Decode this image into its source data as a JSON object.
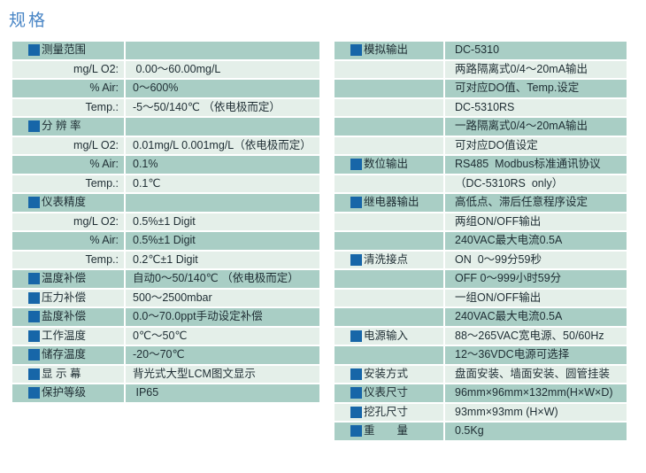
{
  "title": "规格",
  "colors": {
    "row_dark": "#a9cec5",
    "row_light": "#e4efe9",
    "bullet_blue": "#1766a8",
    "title_blue": "#4a86c6",
    "text": "#1e2d33"
  },
  "left_table": {
    "rows": [
      {
        "type": "section",
        "label": "测量范围",
        "value": ""
      },
      {
        "type": "sub",
        "label": "mg/L O2:",
        "value": " 0.00～60.00mg/L"
      },
      {
        "type": "sub",
        "label": "% Air:",
        "value": "0～600%"
      },
      {
        "type": "sub",
        "label": "Temp.:",
        "value": "-5～50/140℃ （依电极而定）"
      },
      {
        "type": "section",
        "label": "分 辨 率",
        "value": ""
      },
      {
        "type": "sub",
        "label": "mg/L O2:",
        "value": "0.01mg/L 0.001mg/L（依电极而定）"
      },
      {
        "type": "sub",
        "label": "% Air:",
        "value": "0.1%"
      },
      {
        "type": "sub",
        "label": "Temp.:",
        "value": "0.1℃"
      },
      {
        "type": "section",
        "label": "仪表精度",
        "value": ""
      },
      {
        "type": "sub",
        "label": "mg/L O2:",
        "value": "0.5%±1 Digit"
      },
      {
        "type": "sub",
        "label": "% Air:",
        "value": "0.5%±1 Digit"
      },
      {
        "type": "sub",
        "label": "Temp.:",
        "value": "0.2℃±1 Digit"
      },
      {
        "type": "section",
        "label": "温度补偿",
        "value": "自动0～50/140℃ （依电极而定）"
      },
      {
        "type": "section",
        "label": "压力补偿",
        "value": "500～2500mbar"
      },
      {
        "type": "section",
        "label": "盐度补偿",
        "value": "0.0～70.0ppt手动设定补偿"
      },
      {
        "type": "section",
        "label": "工作温度",
        "value": "0℃～50℃"
      },
      {
        "type": "section",
        "label": "储存温度",
        "value": "-20～70℃"
      },
      {
        "type": "section",
        "label": "显 示 幕",
        "value": "背光式大型LCM图文显示"
      },
      {
        "type": "section",
        "label": "保护等级",
        "value": " IP65"
      }
    ]
  },
  "right_table": {
    "rows": [
      {
        "type": "section",
        "label": "模拟输出",
        "value": "DC-5310"
      },
      {
        "type": "cont",
        "label": "",
        "value": "两路隔离式0/4～20mA输出"
      },
      {
        "type": "cont",
        "label": "",
        "value": "可对应DO值、Temp.设定"
      },
      {
        "type": "cont",
        "label": "",
        "value": "DC-5310RS"
      },
      {
        "type": "cont",
        "label": "",
        "value": "一路隔离式0/4～20mA输出"
      },
      {
        "type": "cont",
        "label": "",
        "value": "可对应DO值设定"
      },
      {
        "type": "section",
        "label": "数位输出",
        "value": "RS485  Modbus标准通讯协议"
      },
      {
        "type": "cont",
        "label": "",
        "value": "（DC-5310RS  only）"
      },
      {
        "type": "section",
        "label": "继电器输出",
        "value": "高低点、滞后任意程序设定"
      },
      {
        "type": "cont",
        "label": "",
        "value": "两组ON/OFF输出"
      },
      {
        "type": "cont",
        "label": "",
        "value": "240VAC最大电流0.5A"
      },
      {
        "type": "section",
        "label": "清洗接点",
        "value": "ON  0～99分59秒"
      },
      {
        "type": "cont",
        "label": "",
        "value": "OFF 0～999小时59分"
      },
      {
        "type": "cont",
        "label": "",
        "value": "一组ON/OFF输出"
      },
      {
        "type": "cont",
        "label": "",
        "value": "240VAC最大电流0.5A"
      },
      {
        "type": "section",
        "label": "电源输入",
        "value": "88～265VAC宽电源、50/60Hz"
      },
      {
        "type": "cont",
        "label": "",
        "value": "12～36VDC电源可选择"
      },
      {
        "type": "section",
        "label": "安装方式",
        "value": "盘面安装、墙面安装、圆管挂装"
      },
      {
        "type": "section",
        "label": "仪表尺寸",
        "value": "96mm×96mm×132mm(H×W×D)"
      },
      {
        "type": "section",
        "label": "挖孔尺寸",
        "value": "93mm×93mm (H×W)"
      },
      {
        "type": "section",
        "label": "重　　量",
        "value": "0.5Kg"
      }
    ]
  }
}
